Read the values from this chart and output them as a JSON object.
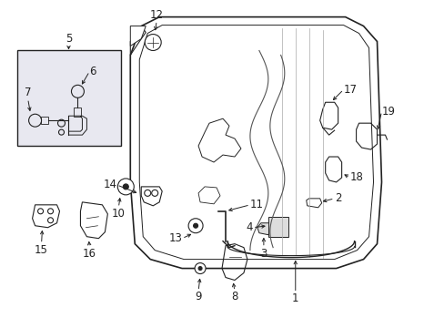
{
  "background_color": "#ffffff",
  "line_color": "#222222",
  "fig_w": 4.89,
  "fig_h": 3.6,
  "dpi": 100
}
